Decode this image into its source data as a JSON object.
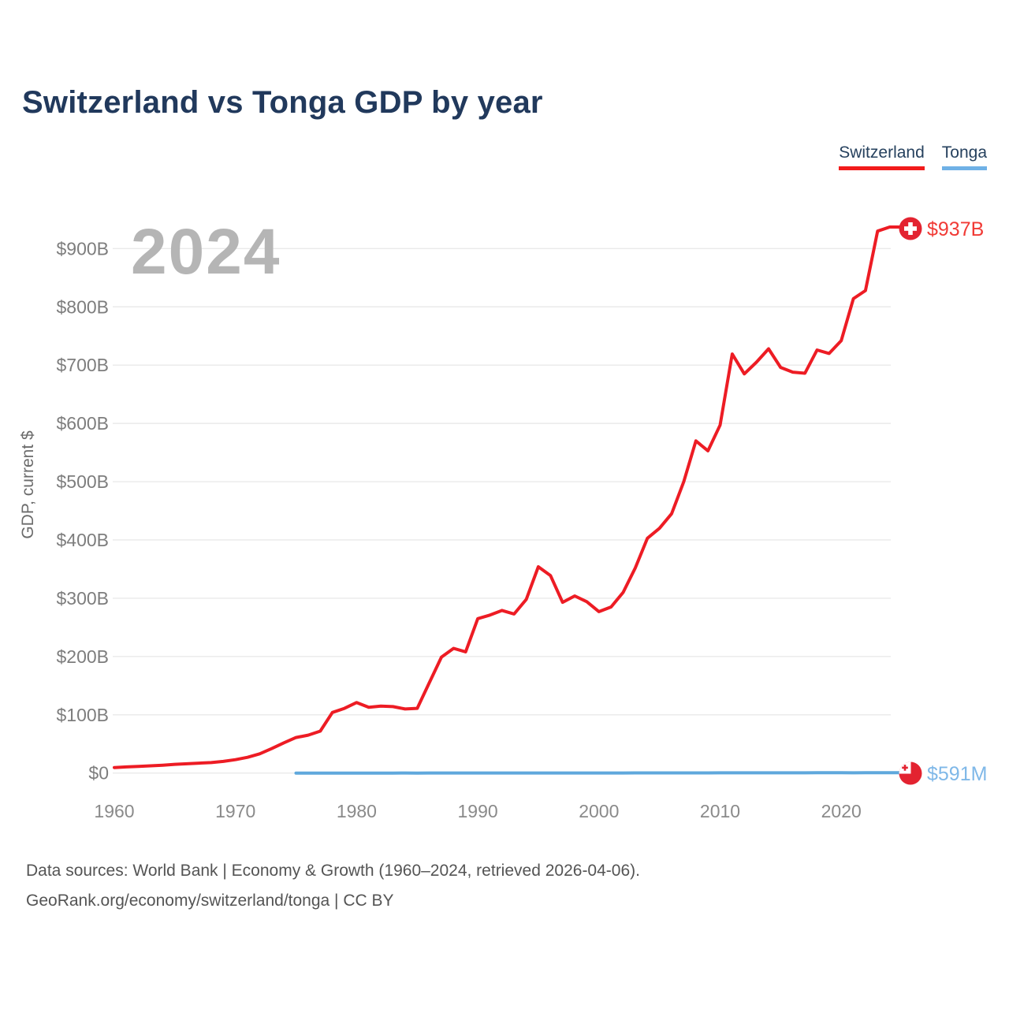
{
  "header": {
    "title": "Switzerland vs Tonga GDP by year"
  },
  "legend": {
    "switzerland": {
      "label": "Switzerland",
      "color": "#f21b1b"
    },
    "tonga": {
      "label": "Tonga",
      "color": "#6fb1e6"
    }
  },
  "watermark": "2024",
  "end_labels": {
    "switzerland": {
      "text": "$937B",
      "color": "#f13a35"
    },
    "tonga": {
      "text": "$591M",
      "color": "#7fb8e8"
    }
  },
  "footer": {
    "line1": "Data sources: World Bank | Economy & Growth (1960–2024, retrieved 2026-04-06).",
    "line2": "GeoRank.org/economy/switzerland/tonga | CC BY"
  },
  "chart_data": {
    "type": "line",
    "title": "Switzerland vs Tonga GDP by year",
    "xlabel": "",
    "ylabel": "GDP, current $",
    "xlim": [
      1960,
      2024
    ],
    "ylim": [
      0,
      950
    ],
    "grid": true,
    "legend_position": "top-right",
    "unit": "billion USD",
    "x_ticks": [
      1960,
      1970,
      1980,
      1990,
      2000,
      2010,
      2020
    ],
    "y_tick_values": [
      0,
      100,
      200,
      300,
      400,
      500,
      600,
      700,
      800,
      900
    ],
    "y_tick_labels": [
      "$0",
      "$100B",
      "$200B",
      "$300B",
      "$400B",
      "$500B",
      "$600B",
      "$700B",
      "$800B",
      "$900B"
    ],
    "series": [
      {
        "name": "Switzerland",
        "color": "#ed1c24",
        "final_value_label": "$937B",
        "x": [
          1960,
          1961,
          1962,
          1963,
          1964,
          1965,
          1966,
          1967,
          1968,
          1969,
          1970,
          1971,
          1972,
          1973,
          1974,
          1975,
          1976,
          1977,
          1978,
          1979,
          1980,
          1981,
          1982,
          1983,
          1984,
          1985,
          1986,
          1987,
          1988,
          1989,
          1990,
          1991,
          1992,
          1993,
          1994,
          1995,
          1996,
          1997,
          1998,
          1999,
          2000,
          2001,
          2002,
          2003,
          2004,
          2005,
          2006,
          2007,
          2008,
          2009,
          2010,
          2011,
          2012,
          2013,
          2014,
          2015,
          2016,
          2017,
          2018,
          2019,
          2020,
          2021,
          2022,
          2023,
          2024
        ],
        "values": [
          9.5,
          10.5,
          11.5,
          12.5,
          13.5,
          15,
          16,
          17,
          18,
          20,
          23,
          27,
          33,
          42,
          52,
          61,
          65,
          72,
          104,
          111,
          121,
          113,
          115,
          114,
          110,
          111,
          155,
          199,
          214,
          208,
          265,
          271,
          279,
          273,
          298,
          354,
          339,
          293,
          304,
          294,
          277,
          285,
          310,
          352,
          403,
          420,
          445,
          500,
          570,
          553,
          597,
          719,
          685,
          705,
          728,
          696,
          688,
          686,
          726,
          720,
          742,
          814,
          828,
          930,
          937
        ]
      },
      {
        "name": "Tonga",
        "color": "#5fa8dc",
        "final_value_label": "$591M",
        "x": [
          1975,
          1976,
          1977,
          1978,
          1979,
          1980,
          1981,
          1982,
          1983,
          1984,
          1985,
          1986,
          1987,
          1988,
          1989,
          1990,
          1991,
          1992,
          1993,
          1994,
          1995,
          1996,
          1997,
          1998,
          1999,
          2000,
          2001,
          2002,
          2003,
          2004,
          2005,
          2006,
          2007,
          2008,
          2009,
          2010,
          2011,
          2012,
          2013,
          2014,
          2015,
          2016,
          2017,
          2018,
          2019,
          2020,
          2021,
          2022,
          2023,
          2024
        ],
        "values": [
          0.025,
          0.028,
          0.032,
          0.038,
          0.045,
          0.051,
          0.057,
          0.062,
          0.066,
          0.07,
          0.066,
          0.077,
          0.096,
          0.112,
          0.117,
          0.114,
          0.122,
          0.131,
          0.137,
          0.152,
          0.176,
          0.185,
          0.174,
          0.162,
          0.167,
          0.189,
          0.184,
          0.186,
          0.21,
          0.244,
          0.262,
          0.271,
          0.286,
          0.328,
          0.317,
          0.369,
          0.42,
          0.47,
          0.466,
          0.445,
          0.435,
          0.442,
          0.457,
          0.489,
          0.512,
          0.491,
          0.469,
          0.5,
          0.547,
          0.591
        ]
      }
    ]
  }
}
